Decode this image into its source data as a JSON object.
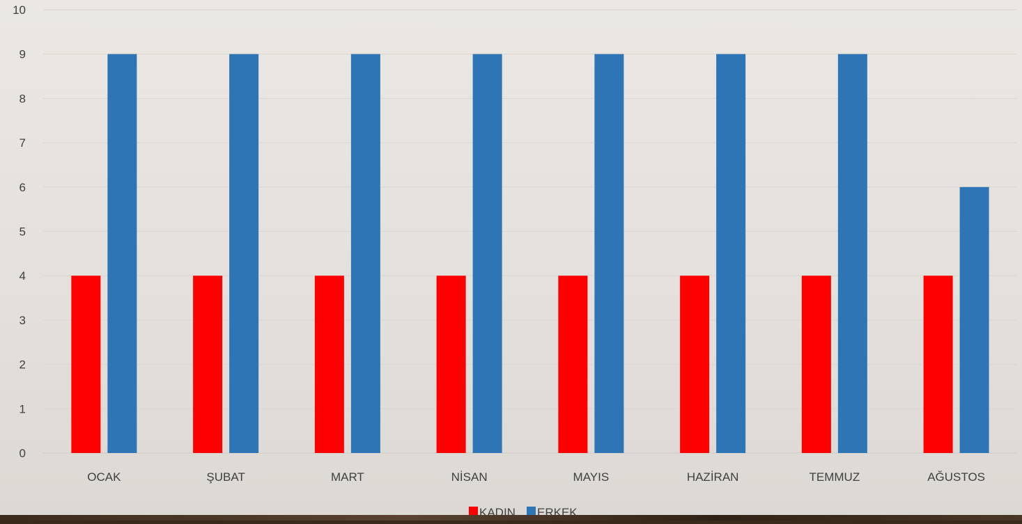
{
  "chart_data": {
    "type": "bar",
    "categories": [
      "OCAK",
      "ŞUBAT",
      "MART",
      "NİSAN",
      "MAYIS",
      "HAZİRAN",
      "TEMMUZ",
      "AĞUSTOS"
    ],
    "series": [
      {
        "name": "KADIN",
        "color": "#ff0000",
        "values": [
          4,
          4,
          4,
          4,
          4,
          4,
          4,
          4
        ]
      },
      {
        "name": "ERKEK",
        "color": "#2e75b6",
        "values": [
          9,
          9,
          9,
          9,
          9,
          9,
          9,
          6
        ]
      }
    ],
    "ylim": [
      0,
      10
    ],
    "yticks": [
      0,
      1,
      2,
      3,
      4,
      5,
      6,
      7,
      8,
      9,
      10
    ],
    "title": "",
    "xlabel": "",
    "ylabel": "",
    "grid": true,
    "legend_position": "bottom"
  }
}
